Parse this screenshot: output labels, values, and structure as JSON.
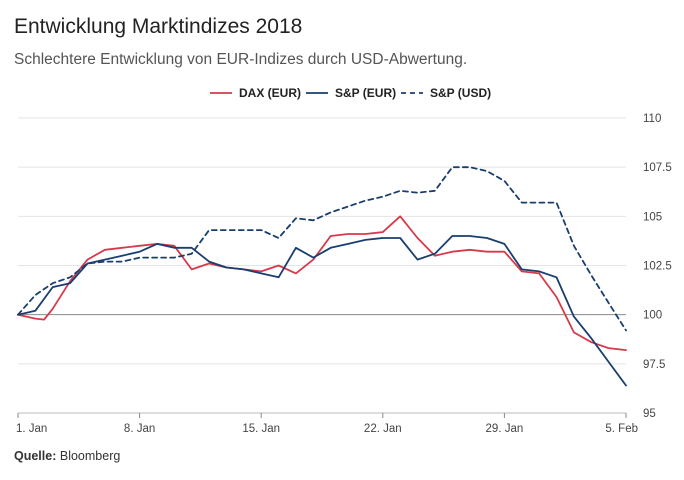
{
  "header": {
    "title": "Entwicklung Marktindizes 2018",
    "subtitle": "Schlechtere Entwicklung von EUR-Indizes durch USD-Abwertung."
  },
  "footer": {
    "source_label": "Quelle:",
    "source_value": "Bloomberg"
  },
  "chart_data": {
    "type": "line",
    "title": "Entwicklung Marktindizes 2018",
    "subtitle": "Schlechtere Entwicklung von EUR-Indizes durch USD-Abwertung.",
    "xlabel": "",
    "ylabel": "",
    "x_ticks": [
      "1. Jan",
      "8. Jan",
      "15. Jan",
      "22. Jan",
      "29. Jan",
      "5. Feb"
    ],
    "x_tick_days": [
      1,
      8,
      15,
      22,
      29,
      36
    ],
    "xlim": [
      1,
      36
    ],
    "ylim": [
      95,
      110
    ],
    "y_ticks": [
      95,
      97.5,
      100,
      102.5,
      105,
      107.5,
      110
    ],
    "y_tick_labels": [
      "95",
      "97.5",
      "100",
      "102.5",
      "105",
      "107.5",
      "110"
    ],
    "grid": true,
    "reference_line": 100,
    "legend_position": "top-center",
    "series": [
      {
        "name": "DAX (EUR)",
        "color": "#d63a4a",
        "style": "solid",
        "points": [
          [
            1,
            100
          ],
          [
            2,
            99.8
          ],
          [
            2.5,
            99.75
          ],
          [
            3,
            100.3
          ],
          [
            4,
            101.7
          ],
          [
            5,
            102.8
          ],
          [
            6,
            103.3
          ],
          [
            7,
            103.4
          ],
          [
            8,
            103.5
          ],
          [
            9,
            103.6
          ],
          [
            10,
            103.5
          ],
          [
            11,
            102.3
          ],
          [
            12,
            102.6
          ],
          [
            13,
            102.4
          ],
          [
            14,
            102.3
          ],
          [
            15,
            102.2
          ],
          [
            16,
            102.5
          ],
          [
            17,
            102.1
          ],
          [
            18,
            102.8
          ],
          [
            19,
            104
          ],
          [
            20,
            104.1
          ],
          [
            21,
            104.1
          ],
          [
            22,
            104.2
          ],
          [
            23,
            105
          ],
          [
            24,
            103.9
          ],
          [
            25,
            103
          ],
          [
            26,
            103.2
          ],
          [
            27,
            103.3
          ],
          [
            28,
            103.2
          ],
          [
            29,
            103.2
          ],
          [
            30,
            102.2
          ],
          [
            31,
            102.1
          ],
          [
            32,
            100.9
          ],
          [
            33,
            99.1
          ],
          [
            34,
            98.6
          ],
          [
            35,
            98.3
          ],
          [
            36,
            98.2
          ]
        ]
      },
      {
        "name": "S&P (EUR)",
        "color": "#1a3e6e",
        "style": "solid",
        "points": [
          [
            1,
            100
          ],
          [
            2,
            100.2
          ],
          [
            3,
            101.4
          ],
          [
            4,
            101.6
          ],
          [
            5,
            102.6
          ],
          [
            6,
            102.8
          ],
          [
            7,
            103
          ],
          [
            8,
            103.2
          ],
          [
            9,
            103.6
          ],
          [
            10,
            103.4
          ],
          [
            11,
            103.4
          ],
          [
            12,
            102.7
          ],
          [
            13,
            102.4
          ],
          [
            14,
            102.3
          ],
          [
            15,
            102.1
          ],
          [
            16,
            101.9
          ],
          [
            17,
            103.4
          ],
          [
            18,
            102.9
          ],
          [
            19,
            103.4
          ],
          [
            20,
            103.6
          ],
          [
            21,
            103.8
          ],
          [
            22,
            103.9
          ],
          [
            23,
            103.9
          ],
          [
            24,
            102.8
          ],
          [
            25,
            103.1
          ],
          [
            26,
            104
          ],
          [
            27,
            104
          ],
          [
            28,
            103.9
          ],
          [
            29,
            103.6
          ],
          [
            30,
            102.3
          ],
          [
            31,
            102.2
          ],
          [
            32,
            101.9
          ],
          [
            33,
            99.9
          ],
          [
            34,
            98.8
          ],
          [
            35,
            97.6
          ],
          [
            36,
            96.4
          ]
        ]
      },
      {
        "name": "S&P (USD)",
        "color": "#1a3e6e",
        "style": "dashed",
        "points": [
          [
            1,
            100
          ],
          [
            2,
            101
          ],
          [
            3,
            101.6
          ],
          [
            4,
            101.9
          ],
          [
            5,
            102.6
          ],
          [
            6,
            102.7
          ],
          [
            7,
            102.7
          ],
          [
            8,
            102.9
          ],
          [
            9,
            102.9
          ],
          [
            10,
            102.9
          ],
          [
            11,
            103.1
          ],
          [
            12,
            104.3
          ],
          [
            13,
            104.3
          ],
          [
            14,
            104.3
          ],
          [
            15,
            104.3
          ],
          [
            16,
            103.9
          ],
          [
            17,
            104.9
          ],
          [
            18,
            104.8
          ],
          [
            19,
            105.2
          ],
          [
            20,
            105.5
          ],
          [
            21,
            105.8
          ],
          [
            22,
            106
          ],
          [
            23,
            106.3
          ],
          [
            24,
            106.2
          ],
          [
            25,
            106.3
          ],
          [
            26,
            107.5
          ],
          [
            27,
            107.5
          ],
          [
            28,
            107.3
          ],
          [
            29,
            106.8
          ],
          [
            30,
            105.7
          ],
          [
            31,
            105.7
          ],
          [
            32,
            105.7
          ],
          [
            33,
            103.5
          ],
          [
            34,
            102
          ],
          [
            35,
            100.6
          ],
          [
            36,
            99.2
          ]
        ]
      }
    ]
  }
}
